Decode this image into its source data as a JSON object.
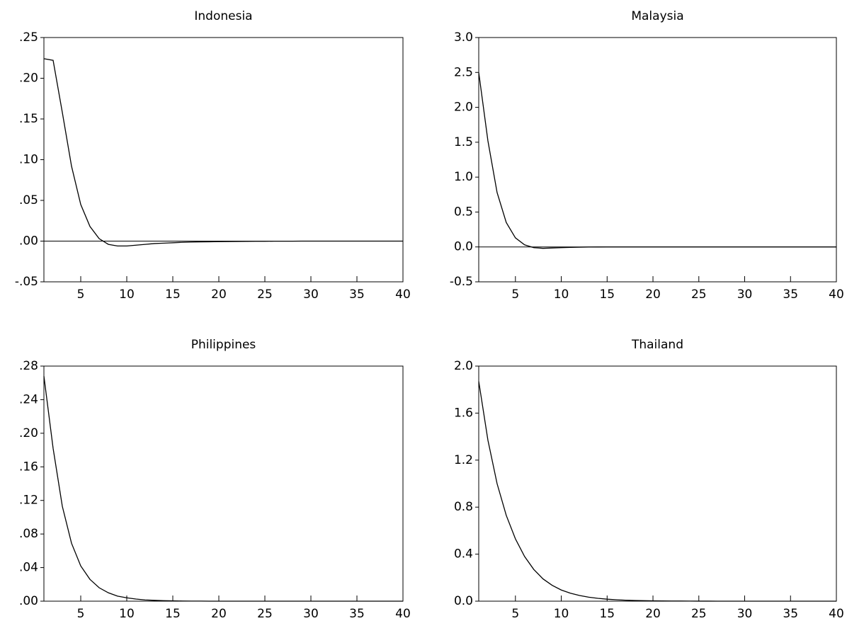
{
  "chart_data": [
    {
      "type": "line",
      "title": "Indonesia",
      "x": [
        1,
        2,
        3,
        4,
        5,
        6,
        7,
        8,
        9,
        10,
        11,
        12,
        13,
        14,
        15,
        16,
        17,
        18,
        19,
        20,
        21,
        22,
        23,
        24,
        25,
        26,
        27,
        28,
        29,
        30,
        31,
        32,
        33,
        34,
        35,
        36,
        37,
        38,
        39,
        40
      ],
      "values": [
        0.224,
        0.222,
        0.158,
        0.092,
        0.045,
        0.018,
        0.003,
        -0.004,
        -0.006,
        -0.006,
        -0.005,
        -0.004,
        -0.003,
        -0.0025,
        -0.002,
        -0.0015,
        -0.0012,
        -0.001,
        -0.0008,
        -0.0006,
        -0.0005,
        -0.0004,
        -0.0003,
        -0.0002,
        -0.0002,
        -0.0001,
        -0.0001,
        -0.0001,
        0,
        0,
        0,
        0,
        0,
        0,
        0,
        0,
        0,
        0,
        0,
        0
      ],
      "color": "#000000",
      "xlim": [
        1,
        40
      ],
      "xticks": [
        5,
        10,
        15,
        20,
        25,
        30,
        35,
        40
      ],
      "ylim": [
        -0.05,
        0.25
      ],
      "yticks": [
        {
          "value": 0.25,
          "label": ".25"
        },
        {
          "value": 0.2,
          "label": ".20"
        },
        {
          "value": 0.15,
          "label": ".15"
        },
        {
          "value": 0.1,
          "label": ".10"
        },
        {
          "value": 0.05,
          "label": ".05"
        },
        {
          "value": 0,
          "label": ".00"
        },
        {
          "value": -0.05,
          "label": "-.05"
        }
      ],
      "zero_line": true
    },
    {
      "type": "line",
      "title": "Malaysia",
      "x": [
        1,
        2,
        3,
        4,
        5,
        6,
        7,
        8,
        9,
        10,
        11,
        12,
        13,
        14,
        15,
        16,
        17,
        18,
        19,
        20,
        21,
        22,
        23,
        24,
        25,
        26,
        27,
        28,
        29,
        30,
        31,
        32,
        33,
        34,
        35,
        36,
        37,
        38,
        39,
        40
      ],
      "values": [
        2.5,
        1.52,
        0.78,
        0.35,
        0.13,
        0.03,
        -0.01,
        -0.02,
        -0.015,
        -0.01,
        -0.006,
        -0.004,
        -0.002,
        -0.001,
        0,
        0,
        0,
        0,
        0,
        0,
        0,
        0,
        0,
        0,
        0,
        0,
        0,
        0,
        0,
        0,
        0,
        0,
        0,
        0,
        0,
        0,
        0,
        0,
        0,
        0
      ],
      "color": "#000000",
      "xlim": [
        1,
        40
      ],
      "xticks": [
        5,
        10,
        15,
        20,
        25,
        30,
        35,
        40
      ],
      "ylim": [
        -0.5,
        3.0
      ],
      "yticks": [
        {
          "value": 3.0,
          "label": "3.0"
        },
        {
          "value": 2.5,
          "label": "2.5"
        },
        {
          "value": 2.0,
          "label": "2.0"
        },
        {
          "value": 1.5,
          "label": "1.5"
        },
        {
          "value": 1.0,
          "label": "1.0"
        },
        {
          "value": 0.5,
          "label": "0.5"
        },
        {
          "value": 0,
          "label": "0.0"
        },
        {
          "value": -0.5,
          "label": "-0.5"
        }
      ],
      "zero_line": true
    },
    {
      "type": "line",
      "title": "Philippines",
      "x": [
        1,
        2,
        3,
        4,
        5,
        6,
        7,
        8,
        9,
        10,
        11,
        12,
        13,
        14,
        15,
        16,
        17,
        18,
        19,
        20,
        21,
        22,
        23,
        24,
        25,
        26,
        27,
        28,
        29,
        30,
        31,
        32,
        33,
        34,
        35,
        36,
        37,
        38,
        39,
        40
      ],
      "values": [
        0.268,
        0.182,
        0.113,
        0.069,
        0.042,
        0.026,
        0.016,
        0.01,
        0.006,
        0.004,
        0.0025,
        0.0015,
        0.001,
        0.0006,
        0.0004,
        0.0002,
        0.0001,
        0.0001,
        0,
        0,
        0,
        0,
        0,
        0,
        0,
        0,
        0,
        0,
        0,
        0,
        0,
        0,
        0,
        0,
        0,
        0,
        0,
        0,
        0,
        0
      ],
      "color": "#000000",
      "xlim": [
        1,
        40
      ],
      "xticks": [
        5,
        10,
        15,
        20,
        25,
        30,
        35,
        40
      ],
      "ylim": [
        0,
        0.28
      ],
      "yticks": [
        {
          "value": 0.28,
          "label": ".28"
        },
        {
          "value": 0.24,
          "label": ".24"
        },
        {
          "value": 0.2,
          "label": ".20"
        },
        {
          "value": 0.16,
          "label": ".16"
        },
        {
          "value": 0.12,
          "label": ".12"
        },
        {
          "value": 0.08,
          "label": ".08"
        },
        {
          "value": 0.04,
          "label": ".04"
        },
        {
          "value": 0,
          "label": ".00"
        }
      ],
      "zero_line": false
    },
    {
      "type": "line",
      "title": "Thailand",
      "x": [
        1,
        2,
        3,
        4,
        5,
        6,
        7,
        8,
        9,
        10,
        11,
        12,
        13,
        14,
        15,
        16,
        17,
        18,
        19,
        20,
        21,
        22,
        23,
        24,
        25,
        26,
        27,
        28,
        29,
        30,
        31,
        32,
        33,
        34,
        35,
        36,
        37,
        38,
        39,
        40
      ],
      "values": [
        1.87,
        1.37,
        1.0,
        0.73,
        0.53,
        0.38,
        0.27,
        0.19,
        0.135,
        0.095,
        0.068,
        0.048,
        0.034,
        0.024,
        0.017,
        0.012,
        0.0085,
        0.006,
        0.004,
        0.003,
        0.002,
        0.0015,
        0.001,
        0.0007,
        0.0005,
        0.0003,
        0.0002,
        0.0001,
        0.0001,
        0,
        0,
        0,
        0,
        0,
        0,
        0,
        0,
        0,
        0,
        0
      ],
      "color": "#000000",
      "xlim": [
        1,
        40
      ],
      "xticks": [
        5,
        10,
        15,
        20,
        25,
        30,
        35,
        40
      ],
      "ylim": [
        0,
        2.0
      ],
      "yticks": [
        {
          "value": 2.0,
          "label": "2.0"
        },
        {
          "value": 1.6,
          "label": "1.6"
        },
        {
          "value": 1.2,
          "label": "1.2"
        },
        {
          "value": 0.8,
          "label": "0.8"
        },
        {
          "value": 0.4,
          "label": "0.4"
        },
        {
          "value": 0,
          "label": "0.0"
        }
      ],
      "zero_line": false
    }
  ]
}
